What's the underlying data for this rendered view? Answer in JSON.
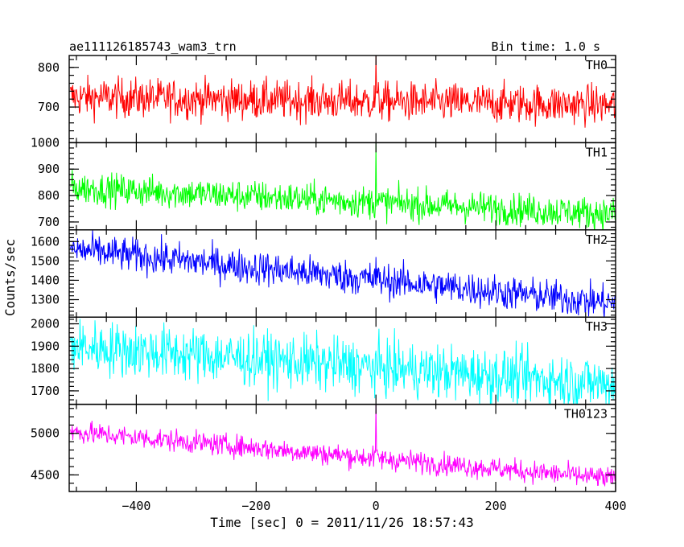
{
  "chart_data": {
    "type": "line",
    "title": "ae111126185743_wam3_trn",
    "bin_time_label": "Bin time: 1.0 s",
    "xlabel": "Time [sec] 0 = 2011/11/26 18:57:43",
    "ylabel": "Counts/sec",
    "xlim": [
      -512,
      400
    ],
    "x_ticks": [
      -400,
      -200,
      0,
      200,
      400
    ],
    "grid": false,
    "panels": [
      {
        "name": "TH0",
        "color": "#ff0000",
        "ylim": [
          610,
          830
        ],
        "y_ticks": [
          700,
          800
        ],
        "trend": [
          [
            -510,
            725
          ],
          [
            400,
            705
          ]
        ],
        "noise": 45,
        "spike": {
          "x": 0,
          "y": 830
        }
      },
      {
        "name": "TH1",
        "color": "#00ff00",
        "ylim": [
          670,
          1000
        ],
        "y_ticks": [
          700,
          800,
          900,
          1000
        ],
        "trend": [
          [
            -510,
            830
          ],
          [
            400,
            730
          ]
        ],
        "noise": 55,
        "spike": {
          "x": 0,
          "y": 1000
        }
      },
      {
        "name": "TH2",
        "color": "#0000ff",
        "ylim": [
          1210,
          1660
        ],
        "y_ticks": [
          1300,
          1400,
          1500,
          1600
        ],
        "trend": [
          [
            -510,
            1560
          ],
          [
            400,
            1280
          ]
        ],
        "noise": 80,
        "spike": {
          "x": 0,
          "y": 1520
        }
      },
      {
        "name": "TH3",
        "color": "#00ffff",
        "ylim": [
          1640,
          2030
        ],
        "y_ticks": [
          1700,
          1800,
          1900,
          2000
        ],
        "trend": [
          [
            -510,
            1900
          ],
          [
            400,
            1730
          ]
        ],
        "noise": 110,
        "spike": {
          "x": 0,
          "y": 1880
        }
      },
      {
        "name": "TH0123",
        "color": "#ff00ff",
        "ylim": [
          4300,
          5350
        ],
        "y_ticks": [
          4500,
          5000
        ],
        "trend": [
          [
            -510,
            5020
          ],
          [
            400,
            4450
          ]
        ],
        "noise": 120,
        "spike": {
          "x": 0,
          "y": 5350
        }
      }
    ]
  }
}
